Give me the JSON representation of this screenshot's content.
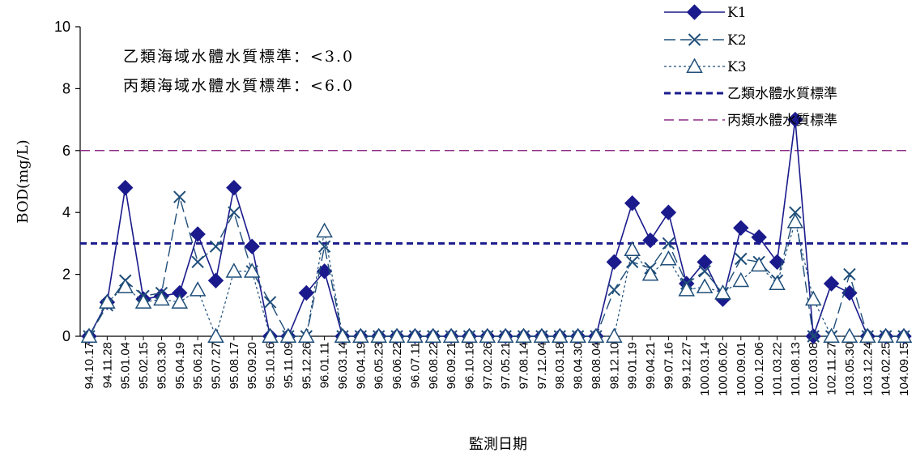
{
  "chart_data": {
    "type": "line",
    "title": "",
    "xlabel": "監測日期",
    "ylabel": "BOD(mg/L)",
    "ylim": [
      0,
      10
    ],
    "yticks": [
      "0",
      "2",
      "4",
      "6",
      "8",
      "10"
    ],
    "grid": false,
    "legend_position": "top-right",
    "annotations": [
      "乙類海域水體水質標準：<3.0",
      "丙類海域水體水質標準：<6.0"
    ],
    "categories": [
      "94.10.17",
      "94.11.28",
      "95.01.04",
      "95.02.15",
      "95.03.30",
      "95.04.19",
      "95.06.21",
      "95.07.27",
      "95.08.17",
      "95.09.20",
      "95.10.16",
      "95.11.09",
      "95.12.26",
      "96.01.11",
      "96.03.14",
      "96.04.19",
      "96.05.23",
      "96.06.22",
      "96.07.11",
      "96.08.22",
      "96.09.21",
      "96.10.18",
      "97.02.26",
      "97.05.21",
      "97.08.14",
      "97.12.04",
      "98.03.18",
      "98.04.30",
      "98.08.04",
      "98.12.10",
      "99.01.19",
      "99.04.21",
      "99.07.16",
      "99.12.27",
      "100.03.14",
      "100.06.02",
      "100.09.01",
      "100.12.06",
      "101.03.22",
      "101.08.13",
      "102.03.08",
      "102.11.27",
      "103.05.30",
      "103.12.24",
      "104.02.25",
      "104.09.15"
    ],
    "series": [
      {
        "name": "K1",
        "color": "#1a1a8c",
        "marker": "diamond",
        "values": [
          0,
          1.1,
          4.8,
          1.2,
          1.3,
          1.4,
          3.3,
          1.8,
          4.8,
          2.9,
          0,
          0,
          1.4,
          2.1,
          0,
          0,
          0,
          0,
          0,
          0,
          0,
          0,
          0,
          0,
          0,
          0,
          0,
          0,
          0,
          2.4,
          4.3,
          3.1,
          4.0,
          1.7,
          2.4,
          1.2,
          3.5,
          3.2,
          2.4,
          7.0,
          0,
          1.7,
          1.4,
          0,
          0,
          0
        ]
      },
      {
        "name": "K2",
        "color": "#1f4e79",
        "marker": "x",
        "values": [
          0,
          1.0,
          1.8,
          1.3,
          1.4,
          4.5,
          2.4,
          2.9,
          4.0,
          2.1,
          1.1,
          0,
          0,
          2.9,
          0,
          0,
          0,
          0,
          0,
          0,
          0,
          0,
          0,
          0,
          0,
          0,
          0,
          0,
          0,
          1.5,
          2.4,
          2.2,
          3.0,
          1.7,
          2.1,
          1.4,
          2.5,
          2.4,
          1.8,
          4.0,
          0,
          0,
          2.0,
          0,
          0,
          0
        ]
      },
      {
        "name": "K3",
        "color": "#1f4e79",
        "marker": "triangle",
        "values": [
          0,
          1.1,
          1.6,
          1.1,
          1.2,
          1.1,
          1.5,
          0,
          2.1,
          2.1,
          0,
          0,
          0,
          3.4,
          0,
          0,
          0,
          0,
          0,
          0,
          0,
          0,
          0,
          0,
          0,
          0,
          0,
          0,
          0,
          0,
          2.8,
          2.0,
          2.5,
          1.5,
          1.6,
          1.4,
          1.8,
          2.3,
          1.7,
          3.7,
          1.2,
          0,
          0,
          0,
          0,
          0
        ]
      }
    ],
    "reference_lines": [
      {
        "name": "乙類水體水質標準",
        "value": 3.0,
        "color": "#1a1a8c"
      },
      {
        "name": "丙類水體水質標準",
        "value": 6.0,
        "color": "#8e2c86"
      }
    ]
  }
}
